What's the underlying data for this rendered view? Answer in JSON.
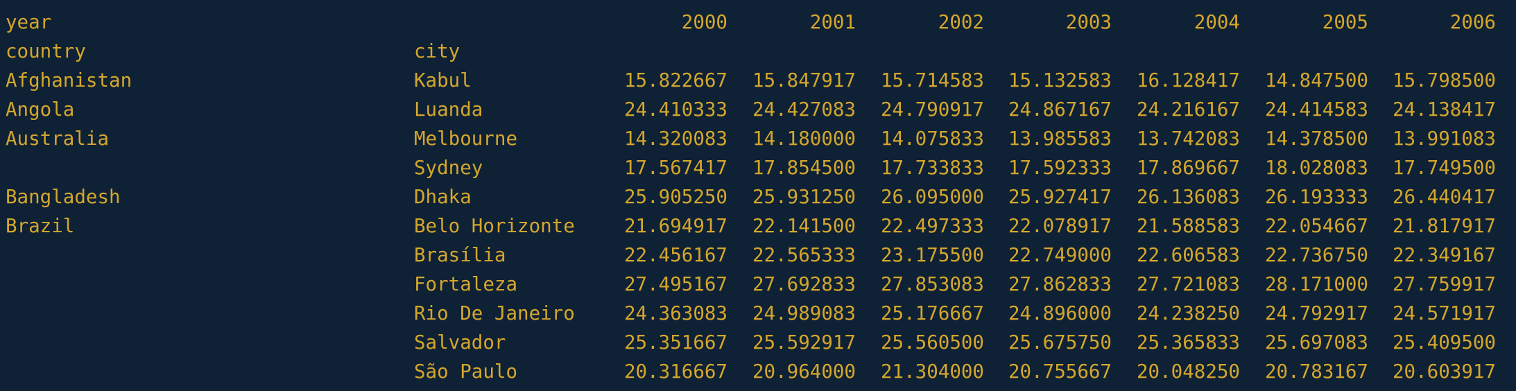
{
  "header": {
    "year_label": "year",
    "country_label": "country",
    "city_label": "city",
    "years": [
      "2000",
      "2001",
      "2002",
      "2003",
      "2004",
      "2005",
      "2006"
    ]
  },
  "rows": [
    {
      "country": "Afghanistan",
      "city": "Kabul",
      "values": [
        "15.822667",
        "15.847917",
        "15.714583",
        "15.132583",
        "16.128417",
        "14.847500",
        "15.798500"
      ]
    },
    {
      "country": "Angola",
      "city": "Luanda",
      "values": [
        "24.410333",
        "24.427083",
        "24.790917",
        "24.867167",
        "24.216167",
        "24.414583",
        "24.138417"
      ]
    },
    {
      "country": "Australia",
      "city": "Melbourne",
      "values": [
        "14.320083",
        "14.180000",
        "14.075833",
        "13.985583",
        "13.742083",
        "14.378500",
        "13.991083"
      ]
    },
    {
      "country": "",
      "city": "Sydney",
      "values": [
        "17.567417",
        "17.854500",
        "17.733833",
        "17.592333",
        "17.869667",
        "18.028083",
        "17.749500"
      ]
    },
    {
      "country": "Bangladesh",
      "city": "Dhaka",
      "values": [
        "25.905250",
        "25.931250",
        "26.095000",
        "25.927417",
        "26.136083",
        "26.193333",
        "26.440417"
      ]
    },
    {
      "country": "Brazil",
      "city": "Belo Horizonte",
      "values": [
        "21.694917",
        "22.141500",
        "22.497333",
        "22.078917",
        "21.588583",
        "22.054667",
        "21.817917"
      ]
    },
    {
      "country": "",
      "city": "Brasília",
      "values": [
        "22.456167",
        "22.565333",
        "23.175500",
        "22.749000",
        "22.606583",
        "22.736750",
        "22.349167"
      ]
    },
    {
      "country": "",
      "city": "Fortaleza",
      "values": [
        "27.495167",
        "27.692833",
        "27.853083",
        "27.862833",
        "27.721083",
        "28.171000",
        "27.759917"
      ]
    },
    {
      "country": "",
      "city": "Rio De Janeiro",
      "values": [
        "24.363083",
        "24.989083",
        "25.176667",
        "24.896000",
        "24.238250",
        "24.792917",
        "24.571917"
      ]
    },
    {
      "country": "",
      "city": "Salvador",
      "values": [
        "25.351667",
        "25.592917",
        "25.560500",
        "25.675750",
        "25.365833",
        "25.697083",
        "25.409500"
      ]
    },
    {
      "country": "",
      "city": "São Paulo",
      "values": [
        "20.316667",
        "20.964000",
        "21.304000",
        "20.755667",
        "20.048250",
        "20.783167",
        "20.603917"
      ]
    }
  ],
  "colors": {
    "background": "#0f2135",
    "text": "#d4a72c"
  }
}
